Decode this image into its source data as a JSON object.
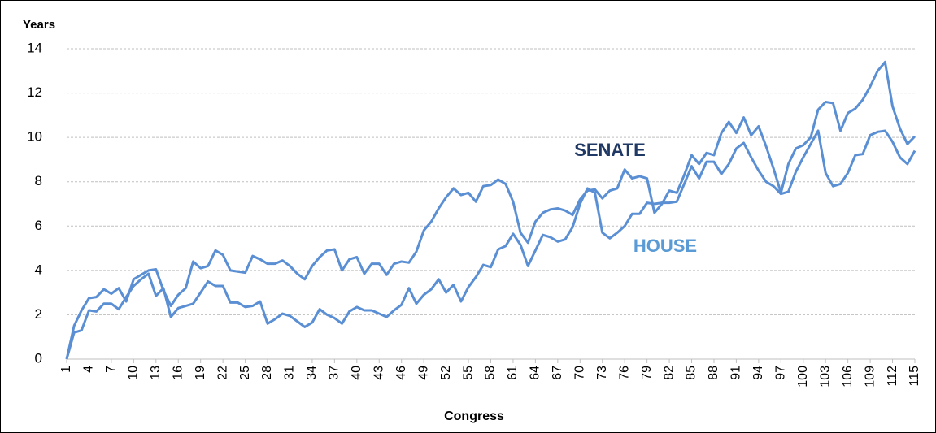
{
  "chart_data": {
    "type": "line",
    "y_label": "Years",
    "x_label": "Congress",
    "x": [
      1,
      2,
      3,
      4,
      5,
      6,
      7,
      8,
      9,
      10,
      11,
      12,
      13,
      14,
      15,
      16,
      17,
      18,
      19,
      20,
      21,
      22,
      23,
      24,
      25,
      26,
      27,
      28,
      29,
      30,
      31,
      32,
      33,
      34,
      35,
      36,
      37,
      38,
      39,
      40,
      41,
      42,
      43,
      44,
      45,
      46,
      47,
      48,
      49,
      50,
      51,
      52,
      53,
      54,
      55,
      56,
      57,
      58,
      59,
      60,
      61,
      62,
      63,
      64,
      65,
      66,
      67,
      68,
      69,
      70,
      71,
      72,
      73,
      74,
      75,
      76,
      77,
      78,
      79,
      80,
      81,
      82,
      83,
      84,
      85,
      86,
      87,
      88,
      89,
      90,
      91,
      92,
      93,
      94,
      95,
      96,
      97,
      98,
      99,
      100,
      101,
      102,
      103,
      104,
      105,
      106,
      107,
      108,
      109,
      110,
      111,
      112,
      113,
      114,
      115
    ],
    "series": [
      {
        "name": "SENATE",
        "color": "#5b8fd4",
        "label_color": "#1f3864",
        "values": [
          0,
          1.5,
          2.2,
          2.75,
          2.8,
          3.15,
          2.95,
          3.2,
          2.6,
          3.6,
          3.8,
          4.0,
          4.05,
          3.1,
          2.4,
          2.9,
          3.2,
          4.4,
          4.1,
          4.2,
          4.9,
          4.7,
          4.0,
          3.95,
          3.9,
          4.65,
          4.5,
          4.3,
          4.3,
          4.45,
          4.2,
          3.85,
          3.6,
          4.2,
          4.6,
          4.9,
          4.95,
          4.0,
          4.5,
          4.6,
          3.85,
          4.3,
          4.3,
          3.8,
          4.3,
          4.4,
          4.35,
          4.85,
          5.8,
          6.2,
          6.8,
          7.3,
          7.7,
          7.4,
          7.5,
          7.1,
          7.8,
          7.85,
          8.1,
          7.9,
          7.1,
          5.7,
          5.25,
          6.2,
          6.6,
          6.75,
          6.8,
          6.7,
          6.5,
          7.2,
          7.6,
          7.65,
          7.25,
          7.6,
          7.7,
          8.55,
          8.15,
          8.25,
          8.15,
          6.6,
          7.0,
          7.6,
          7.5,
          8.3,
          9.2,
          8.8,
          9.3,
          9.2,
          10.2,
          10.7,
          10.2,
          10.9,
          10.1,
          10.5,
          9.6,
          8.6,
          7.5,
          8.8,
          9.5,
          9.65,
          10.0,
          11.25,
          11.6,
          11.55,
          10.3,
          11.1,
          11.3,
          11.7,
          12.3,
          13.0,
          13.4,
          11.4,
          10.4,
          9.7,
          10.05
        ]
      },
      {
        "name": "HOUSE",
        "color": "#5b8fd4",
        "label_color": "#5b9bd5",
        "values": [
          0,
          1.2,
          1.3,
          2.2,
          2.15,
          2.5,
          2.5,
          2.25,
          2.8,
          3.3,
          3.6,
          3.85,
          2.85,
          3.2,
          1.9,
          2.3,
          2.4,
          2.5,
          3.0,
          3.5,
          3.3,
          3.3,
          2.55,
          2.55,
          2.35,
          2.4,
          2.6,
          1.6,
          1.8,
          2.05,
          1.95,
          1.7,
          1.45,
          1.65,
          2.25,
          2.0,
          1.85,
          1.6,
          2.15,
          2.35,
          2.2,
          2.2,
          2.05,
          1.9,
          2.2,
          2.45,
          3.2,
          2.5,
          2.9,
          3.15,
          3.6,
          3.0,
          3.35,
          2.6,
          3.25,
          3.7,
          4.25,
          4.15,
          4.95,
          5.1,
          5.65,
          5.15,
          4.2,
          4.9,
          5.6,
          5.5,
          5.3,
          5.4,
          5.95,
          7.0,
          7.7,
          7.5,
          5.7,
          5.45,
          5.7,
          6.0,
          6.55,
          6.55,
          7.05,
          7.0,
          7.05,
          7.05,
          7.1,
          7.9,
          8.7,
          8.15,
          8.9,
          8.9,
          8.35,
          8.8,
          9.5,
          9.75,
          9.1,
          8.5,
          8.0,
          7.8,
          7.45,
          7.55,
          8.45,
          9.1,
          9.7,
          10.3,
          8.4,
          7.8,
          7.9,
          8.4,
          9.2,
          9.25,
          10.1,
          10.25,
          10.3,
          9.8,
          9.1,
          8.8,
          9.4
        ]
      }
    ],
    "xlim": [
      1,
      115
    ],
    "xticks": [
      1,
      4,
      7,
      10,
      13,
      16,
      19,
      22,
      25,
      28,
      31,
      34,
      37,
      40,
      43,
      46,
      49,
      52,
      55,
      58,
      61,
      64,
      67,
      70,
      73,
      76,
      79,
      82,
      85,
      88,
      91,
      94,
      97,
      100,
      103,
      106,
      109,
      112,
      115
    ],
    "ylim": [
      0,
      14
    ],
    "yticks": [
      0,
      2,
      4,
      6,
      8,
      10,
      12,
      14
    ],
    "grid": true
  }
}
